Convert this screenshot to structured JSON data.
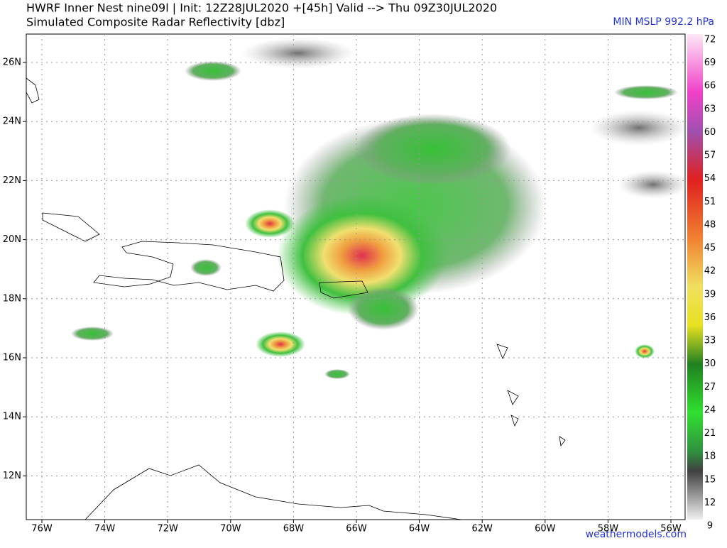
{
  "header": {
    "title": "HWRF Inner Nest  nine09l | Init: 12Z28JUL2020 +[45h] Valid --> Thu 09Z30JUL2020",
    "subtitle": "Simulated Composite Radar Reflectivity [dbz]",
    "min_mslp": "MIN MSLP 992.2 hPa"
  },
  "map": {
    "lat_labels": [
      "26N",
      "24N",
      "22N",
      "20N",
      "18N",
      "16N",
      "14N",
      "12N"
    ],
    "lon_labels": [
      "76W",
      "74W",
      "72W",
      "70W",
      "68W",
      "66W",
      "64W",
      "62W",
      "60W",
      "58W",
      "56W"
    ]
  },
  "colorbar": {
    "labels": [
      "72",
      "69",
      "66",
      "63",
      "60",
      "57",
      "54",
      "51",
      "48",
      "45",
      "42",
      "39",
      "36",
      "33",
      "30",
      "27",
      "24",
      "21",
      "18",
      "15",
      "12",
      "9"
    ]
  },
  "footer": {
    "source": "weathermodels.com"
  }
}
